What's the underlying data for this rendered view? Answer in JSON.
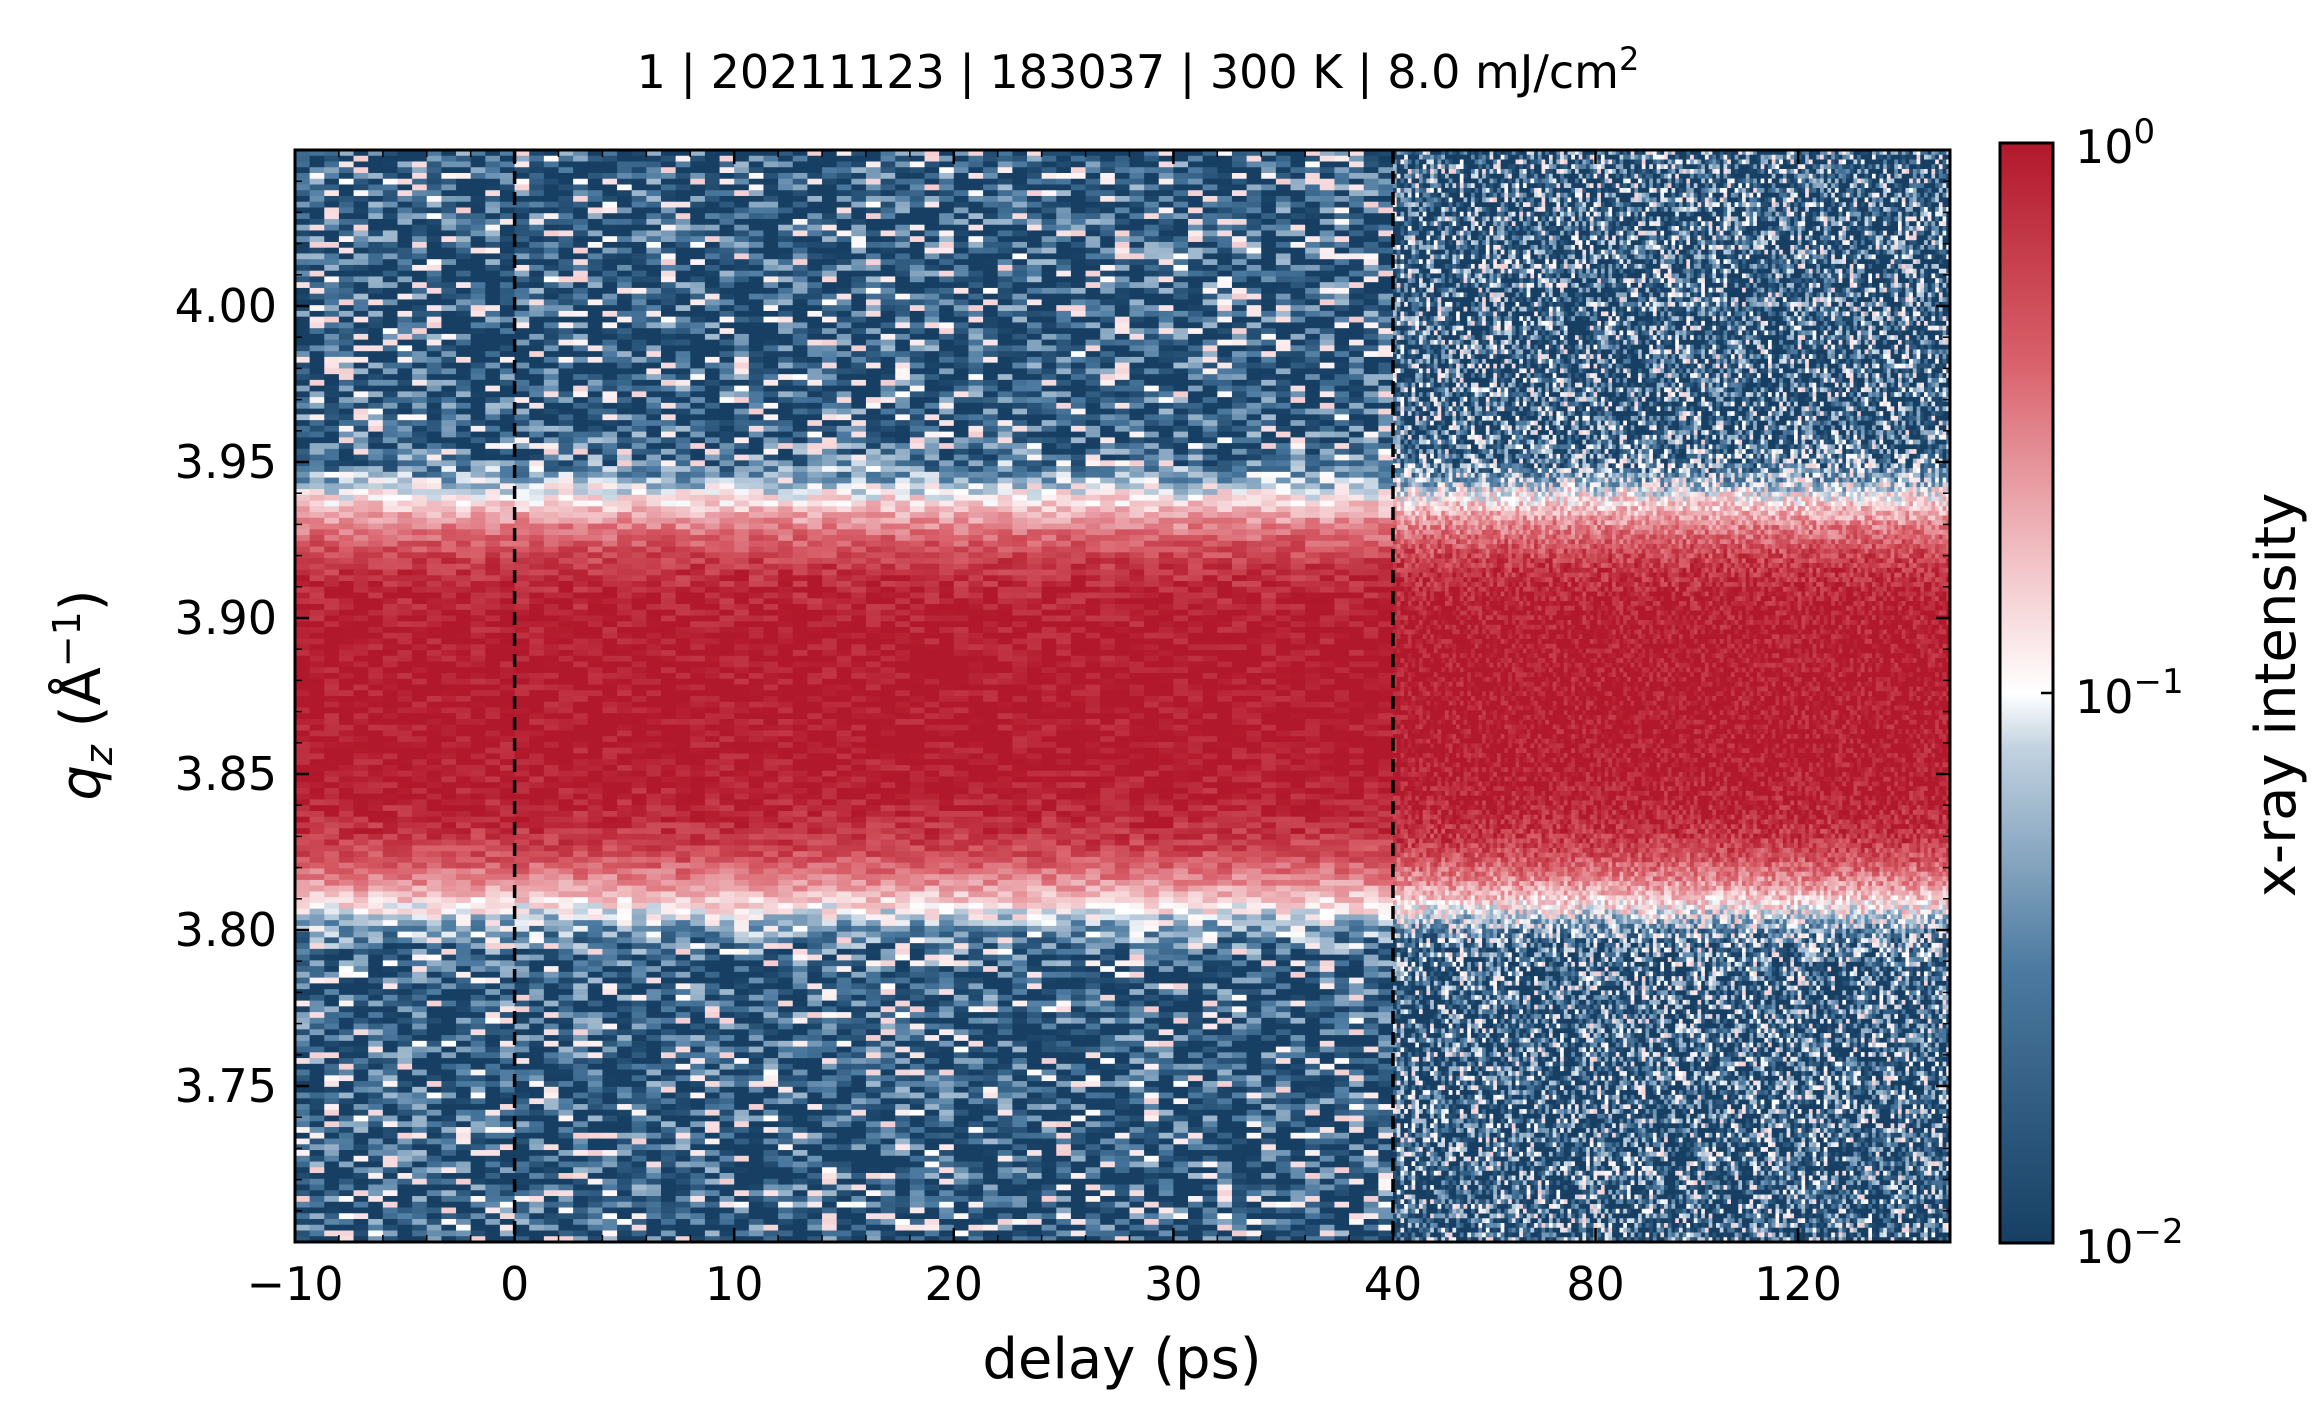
{
  "title": {
    "main": "1 | 20211123 | 183037 | 300 K | 8.0 mJ/cm",
    "sup": "2"
  },
  "chart_data": {
    "type": "heatmap",
    "xlabel": "delay (ps)",
    "ylabel": "q",
    "ylabel_sub": "z",
    "ylabel_unit": " (Å",
    "ylabel_unit_sup": "−1",
    "ylabel_unit_close": ")",
    "x_scale": "piecewise: linear from -10 to 40 ps, then compressed linear from 40 to ~150 ps",
    "x_segments": [
      {
        "from": -10,
        "to": 40
      },
      {
        "from": 40,
        "to": 150
      }
    ],
    "x_ticks": [
      {
        "value": -10,
        "label": "−10"
      },
      {
        "value": 0,
        "label": "0"
      },
      {
        "value": 10,
        "label": "10"
      },
      {
        "value": 20,
        "label": "20"
      },
      {
        "value": 30,
        "label": "30"
      },
      {
        "value": 40,
        "label": "40"
      },
      {
        "value": 80,
        "label": "80"
      },
      {
        "value": 120,
        "label": "120"
      }
    ],
    "ylim": [
      3.7,
      4.05
    ],
    "y_ticks": [
      {
        "value": 3.75,
        "label": "3.75"
      },
      {
        "value": 3.8,
        "label": "3.80"
      },
      {
        "value": 3.85,
        "label": "3.85"
      },
      {
        "value": 3.9,
        "label": "3.90"
      },
      {
        "value": 3.95,
        "label": "3.95"
      },
      {
        "value": 4.0,
        "label": "4.00"
      }
    ],
    "vlines": [
      0,
      40
    ],
    "peak": {
      "center_qz": 3.873,
      "width_qz": 0.045,
      "peak_intensity": 1.0,
      "background_intensity": 0.015
    },
    "colorbar": {
      "label": "x-ray intensity",
      "scale": "log",
      "range": [
        0.01,
        1
      ],
      "ticks": [
        {
          "value": 1,
          "base": "10",
          "exp": "0"
        },
        {
          "value": 0.1,
          "base": "10",
          "exp": "−1"
        },
        {
          "value": 0.01,
          "base": "10",
          "exp": "−2"
        }
      ],
      "colors": {
        "low": "#1b4f72",
        "mid": "#ffffff",
        "high": "#b2182b"
      }
    }
  }
}
